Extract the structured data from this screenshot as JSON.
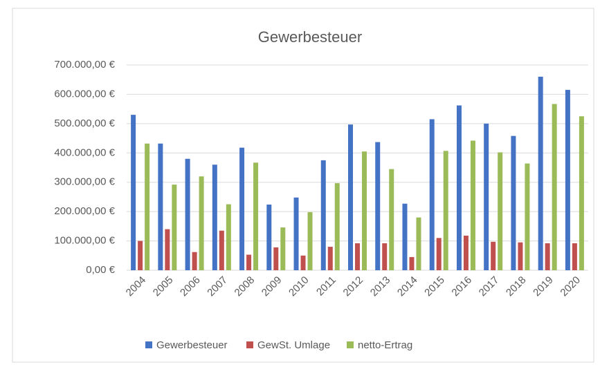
{
  "chart_data": {
    "type": "bar",
    "title": "Gewerbesteuer",
    "categories": [
      "2004",
      "2005",
      "2006",
      "2007",
      "2008",
      "2009",
      "2010",
      "2011",
      "2012",
      "2013",
      "2014",
      "2015",
      "2016",
      "2017",
      "2018",
      "2019",
      "2020"
    ],
    "series": [
      {
        "name": "Gewerbesteuer",
        "color": "#4472c4",
        "values": [
          530000,
          432000,
          380000,
          360000,
          418000,
          224000,
          248000,
          375000,
          497000,
          437000,
          227000,
          515000,
          562000,
          500000,
          458000,
          660000,
          615000
        ]
      },
      {
        "name": "GewSt. Umlage",
        "color": "#c0504d",
        "values": [
          100000,
          140000,
          62000,
          135000,
          53000,
          78000,
          50000,
          80000,
          92000,
          92000,
          45000,
          110000,
          118000,
          97000,
          95000,
          92000,
          92000
        ]
      },
      {
        "name": "netto-Ertrag",
        "color": "#9bbb59",
        "values": [
          432000,
          292000,
          320000,
          225000,
          367000,
          146000,
          198000,
          297000,
          405000,
          345000,
          180000,
          407000,
          442000,
          402000,
          364000,
          567000,
          525000
        ]
      }
    ],
    "ylim": [
      0,
      700000
    ],
    "yticks": [
      {
        "value": 0,
        "label": "0,00 €"
      },
      {
        "value": 100000,
        "label": "100.000,00 €"
      },
      {
        "value": 200000,
        "label": "200.000,00 €"
      },
      {
        "value": 300000,
        "label": "300.000,00 €"
      },
      {
        "value": 400000,
        "label": "400.000,00 €"
      },
      {
        "value": 500000,
        "label": "500.000,00 €"
      },
      {
        "value": 600000,
        "label": "600.000,00 €"
      },
      {
        "value": 700000,
        "label": "700.000,00 €"
      }
    ],
    "grid": true,
    "legend": "bottom"
  }
}
